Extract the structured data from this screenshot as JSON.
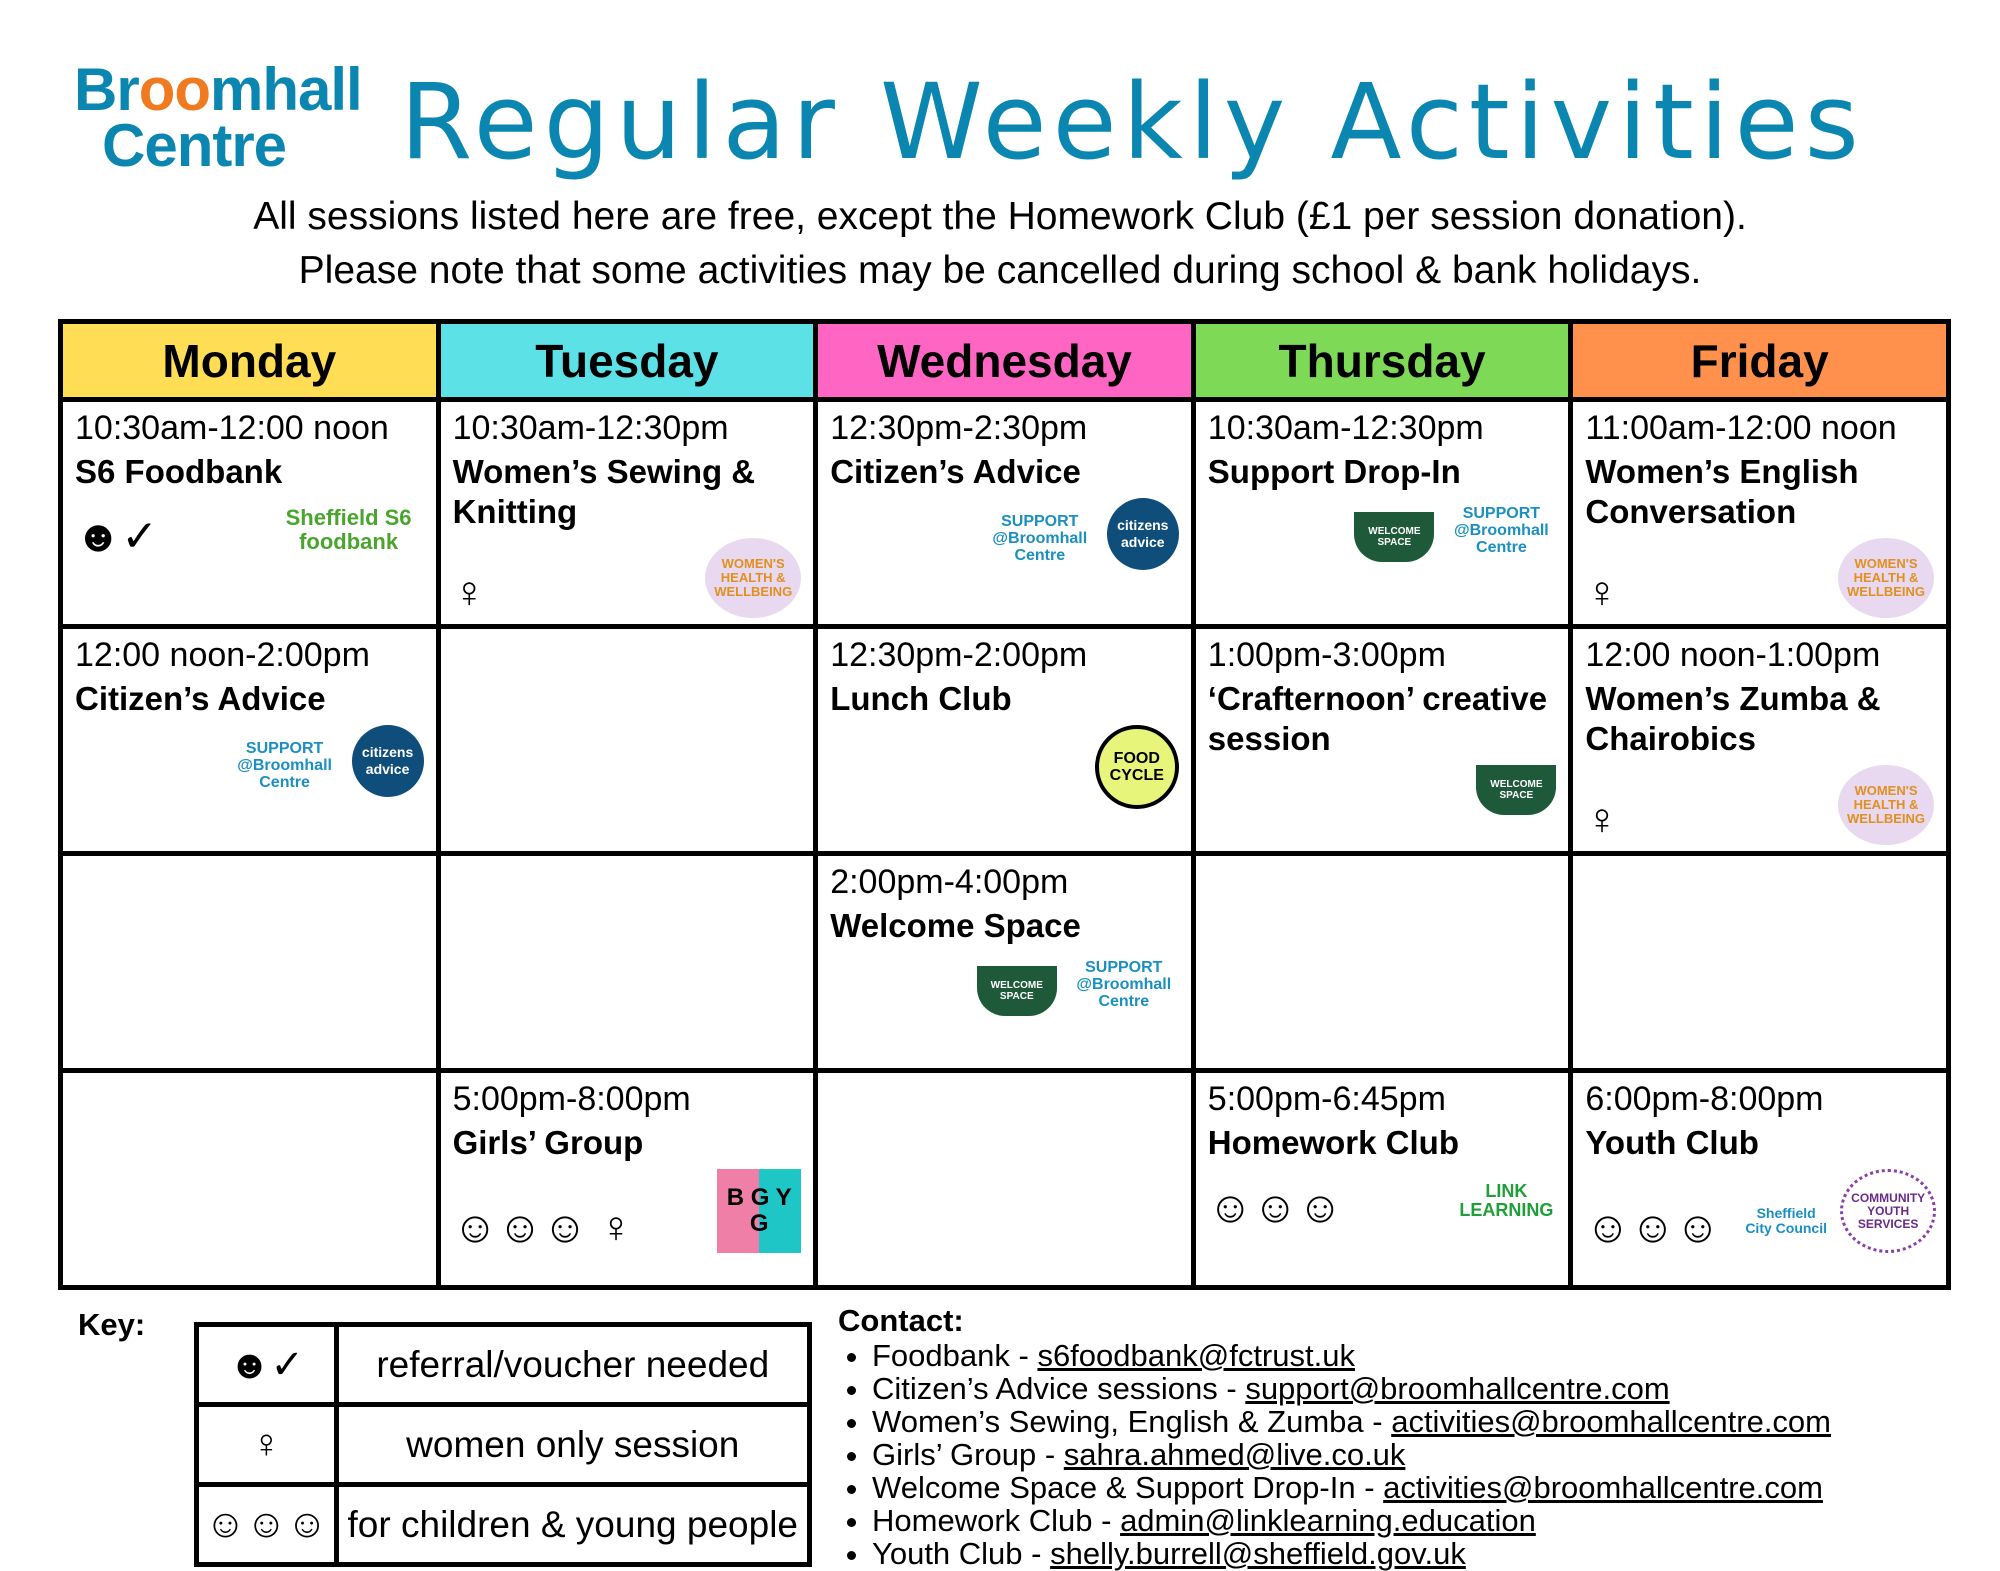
{
  "logo": {
    "line1_a": "Br",
    "line1_o": "oo",
    "line1_b": "mhall",
    "line2": "Centre"
  },
  "title": "Regular Weekly Activities",
  "subtitle": [
    "All sessions listed here are free, except the Homework Club (£1 per session donation).",
    "Please note that some activities may be cancelled during school & bank holidays."
  ],
  "days": [
    {
      "name": "Monday",
      "color": "#ffdd55"
    },
    {
      "name": "Tuesday",
      "color": "#5ce1e6"
    },
    {
      "name": "Wednesday",
      "color": "#ff66c4"
    },
    {
      "name": "Thursday",
      "color": "#7ed957"
    },
    {
      "name": "Friday",
      "color": "#ff914d"
    }
  ],
  "rows": [
    [
      {
        "time": "10:30am-12:00 noon",
        "activity": "S6 Foodbank",
        "icons": [
          "referral-icon"
        ],
        "logos": [
          "Sheffield S6 foodbank"
        ]
      },
      {
        "time": "10:30am-12:30pm",
        "activity": "Women’s Sewing & Knitting",
        "icons": [
          "woman-icon"
        ],
        "logos": [
          "WOMEN'S HEALTH & WELLBEING"
        ]
      },
      {
        "time": "12:30pm-2:30pm",
        "activity": "Citizen’s Advice",
        "logos": [
          "SUPPORT @Broomhall Centre",
          "citizens advice"
        ]
      },
      {
        "time": "10:30am-12:30pm",
        "activity": "Support Drop-In",
        "logos": [
          "WELCOME SPACE",
          "SUPPORT @Broomhall Centre"
        ]
      },
      {
        "time": "11:00am-12:00 noon",
        "activity": "Women’s English Conversation",
        "icons": [
          "woman-icon"
        ],
        "logos": [
          "WOMEN'S HEALTH & WELLBEING"
        ]
      }
    ],
    [
      {
        "time": "12:00 noon-2:00pm",
        "activity": "Citizen’s Advice",
        "logos": [
          "SUPPORT @Broomhall Centre",
          "citizens advice"
        ]
      },
      {},
      {
        "time": "12:30pm-2:00pm",
        "activity": "Lunch Club",
        "logos": [
          "FOOD CYCLE"
        ]
      },
      {
        "time": "1:00pm-3:00pm",
        "activity": "‘Crafternoon’ creative session",
        "logos": [
          "WELCOME SPACE"
        ]
      },
      {
        "time": "12:00 noon-1:00pm",
        "activity": "Women’s Zumba & Chairobics",
        "icons": [
          "woman-icon"
        ],
        "logos": [
          "WOMEN'S HEALTH & WELLBEING"
        ]
      }
    ],
    [
      {},
      {},
      {
        "time": "2:00pm-4:00pm",
        "activity": "Welcome Space",
        "logos": [
          "WELCOME SPACE",
          "SUPPORT @Broomhall Centre"
        ]
      },
      {},
      {}
    ],
    [
      {},
      {
        "time": "5:00pm-8:00pm",
        "activity": "Girls’ Group",
        "icons": [
          "children-icon",
          "woman-icon"
        ],
        "logos": [
          "B G Y G"
        ]
      },
      {},
      {
        "time": "5:00pm-6:45pm",
        "activity": "Homework Club",
        "icons": [
          "children-icon"
        ],
        "logos": [
          "LINK LEARNING"
        ]
      },
      {
        "time": "6:00pm-8:00pm",
        "activity": "Youth Club",
        "icons": [
          "children-icon"
        ],
        "logos": [
          "Sheffield City Council",
          "COMMUNITY YOUTH SERVICES"
        ]
      }
    ]
  ],
  "key": {
    "label": "Key:",
    "items": [
      {
        "icon": "referral-icon",
        "text": "referral/voucher needed"
      },
      {
        "icon": "woman-icon",
        "text": "women only session"
      },
      {
        "icon": "children-icon",
        "text": "for children & young people"
      }
    ]
  },
  "contact": {
    "heading": "Contact:",
    "items": [
      {
        "label": "Foodbank - ",
        "email": "s6foodbank@fctrust.uk"
      },
      {
        "label": "Citizen’s Advice sessions - ",
        "email": "support@broomhallcentre.com"
      },
      {
        "label": "Women’s Sewing, English & Zumba - ",
        "email": "activities@broomhallcentre.com"
      },
      {
        "label": "Girls’ Group - ",
        "email": "sahra.ahmed@live.co.uk"
      },
      {
        "label": "Welcome Space & Support Drop-In - ",
        "email": "activities@broomhallcentre.com"
      },
      {
        "label": "Homework Club - ",
        "email": "admin@linklearning.education"
      },
      {
        "label": "Youth Club - ",
        "email": "shelly.burrell@sheffield.gov.uk"
      }
    ]
  }
}
